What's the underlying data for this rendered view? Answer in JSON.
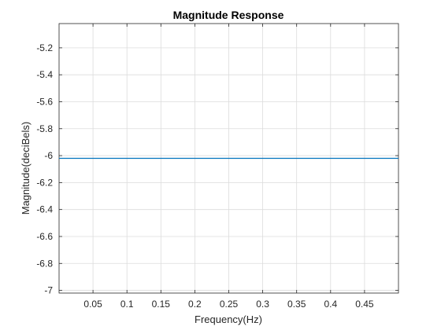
{
  "chart_data": {
    "type": "line",
    "title": "Magnitude Response",
    "xlabel": "Frequency(Hz)",
    "ylabel": "Magnitude(deciBels)",
    "xlim": [
      0,
      0.5
    ],
    "ylim": [
      -7.02,
      -5.02
    ],
    "xticks": [
      0.05,
      0.1,
      0.15,
      0.2,
      0.25,
      0.3,
      0.35,
      0.4,
      0.45
    ],
    "xtick_labels": [
      "0.05",
      "0.1",
      "0.15",
      "0.2",
      "0.25",
      "0.3",
      "0.35",
      "0.4",
      "0.45"
    ],
    "yticks": [
      -5.2,
      -5.4,
      -5.6,
      -5.8,
      -6,
      -6.2,
      -6.4,
      -6.6,
      -6.8,
      -7
    ],
    "ytick_labels": [
      "-5.2",
      "-5.4",
      "-5.6",
      "-5.8",
      "-6",
      "-6.2",
      "-6.4",
      "-6.6",
      "-6.8",
      "-7"
    ],
    "grid": true,
    "series": [
      {
        "x": [
          0,
          0.5
        ],
        "y": [
          -6.02,
          -6.02
        ],
        "color": "#0072BD"
      }
    ]
  }
}
